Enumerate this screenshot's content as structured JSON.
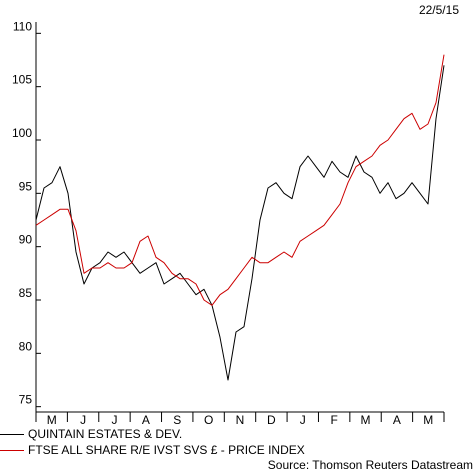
{
  "date_stamp": "22/5/15",
  "source": "Source: Thomson Reuters Datastream",
  "chart_data": {
    "type": "line",
    "ylim": [
      74.5,
      110.5
    ],
    "yticks": [
      75,
      80,
      85,
      90,
      95,
      100,
      105,
      110
    ],
    "xticks": [
      "M",
      "J",
      "J",
      "A",
      "S",
      "O",
      "N",
      "D",
      "J",
      "F",
      "M",
      "A",
      "M"
    ],
    "legend_placement": "bottom-left",
    "grid": false,
    "x_count": 52,
    "series": [
      {
        "name": "QUINTAIN ESTATES & DEV.",
        "color": "#000000",
        "values": [
          92.5,
          95.5,
          96.0,
          97.5,
          95.0,
          89.5,
          86.5,
          88.0,
          88.5,
          89.5,
          89.0,
          89.5,
          88.5,
          87.5,
          88.0,
          88.5,
          86.5,
          87.0,
          87.5,
          86.5,
          85.5,
          86.0,
          84.5,
          81.5,
          77.5,
          82.0,
          82.5,
          87.0,
          92.5,
          95.5,
          96.0,
          95.0,
          94.5,
          97.5,
          98.5,
          97.5,
          96.5,
          98.0,
          97.0,
          96.5,
          98.5,
          97.0,
          96.5,
          95.0,
          96.0,
          94.5,
          95.0,
          96.0,
          95.0,
          94.0,
          102.0,
          107.0
        ]
      },
      {
        "name": "FTSE ALL SHARE R/E IVST SVS £ - PRICE INDEX",
        "color": "#cc0000",
        "values": [
          92.0,
          92.5,
          93.0,
          93.5,
          93.5,
          91.5,
          87.5,
          88.0,
          88.0,
          88.5,
          88.0,
          88.0,
          88.5,
          90.5,
          91.0,
          89.0,
          88.5,
          87.5,
          87.0,
          87.0,
          86.5,
          85.0,
          84.5,
          85.5,
          86.0,
          87.0,
          88.0,
          89.0,
          88.5,
          88.5,
          89.0,
          89.5,
          89.0,
          90.5,
          91.0,
          91.5,
          92.0,
          93.0,
          94.0,
          96.0,
          97.5,
          98.0,
          98.5,
          99.5,
          100.0,
          101.0,
          102.0,
          102.5,
          101.0,
          101.5,
          103.5,
          108.0
        ]
      }
    ]
  }
}
